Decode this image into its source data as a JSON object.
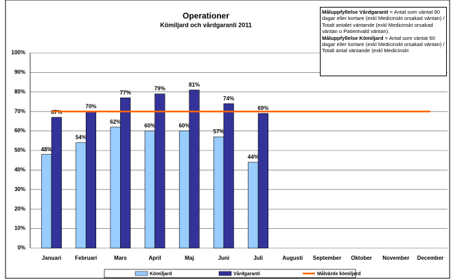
{
  "chart_data": {
    "type": "bar",
    "title": "Operationer",
    "subtitle": "Kömiljard och vårdgaranti 2011",
    "note": [
      {
        "term": "Måluppfyllelse Vårdgaranti",
        "text": "= Antal som väntat 90 dagar eller kortare (exkl Medicinskt orsakad väntan) / Totalt antalet väntande (exkl Medicinskt  orsakad väntan o Patientvald väntan)."
      },
      {
        "term": "Måluppfyllelse Kömiljard",
        "text": "= Antal som väntat 60 dagar eller kortare (exkl Medicinskt orsakad väntan) / Totalt antal väntande (exkl Medicinskt"
      }
    ],
    "categories": [
      "Januari",
      "Februari",
      "Mars",
      "April",
      "Maj",
      "Juni",
      "Juli",
      "Augusti",
      "September",
      "Oktober",
      "November",
      "December"
    ],
    "series": [
      {
        "name": "Kömiljard",
        "color": "#99ccff",
        "values": [
          48,
          54,
          62,
          60,
          60,
          57,
          44,
          null,
          null,
          null,
          null,
          null
        ],
        "value_labels": [
          "48%",
          "54%",
          "62%",
          "60%",
          "60%",
          "57%",
          "44%",
          null,
          null,
          null,
          null,
          null
        ]
      },
      {
        "name": "Vårdgaranti",
        "color": "#333399",
        "values": [
          67,
          70,
          77,
          79,
          81,
          74,
          69,
          null,
          null,
          null,
          null,
          null
        ],
        "value_labels": [
          "67%",
          "70%",
          "77%",
          "79%",
          "81%",
          "74%",
          "69%",
          null,
          null,
          null,
          null,
          null
        ]
      },
      {
        "name": "Målvärde kömiljard",
        "type": "line",
        "color": "#ff6600",
        "values": [
          70,
          70,
          70,
          70,
          70,
          70,
          70,
          70,
          70,
          70,
          70,
          70
        ]
      }
    ],
    "ylim": [
      0,
      100
    ],
    "yticks": [
      {
        "value": 0,
        "label": "0%"
      },
      {
        "value": 10,
        "label": "10%"
      },
      {
        "value": 20,
        "label": "20%"
      },
      {
        "value": 30,
        "label": "30%"
      },
      {
        "value": 40,
        "label": "40%"
      },
      {
        "value": 50,
        "label": "50%"
      },
      {
        "value": 60,
        "label": "60%"
      },
      {
        "value": 70,
        "label": "70%"
      },
      {
        "value": 80,
        "label": "80%"
      },
      {
        "value": 90,
        "label": "90%"
      },
      {
        "value": 100,
        "label": "100%"
      }
    ],
    "grid": true,
    "legend": "bottom"
  }
}
